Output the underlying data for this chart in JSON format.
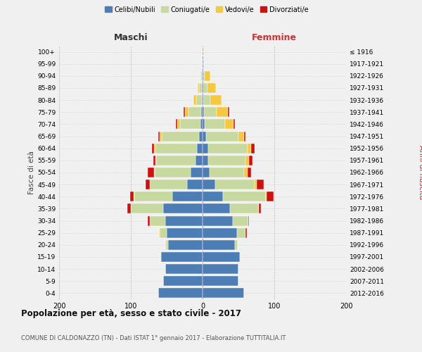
{
  "age_groups": [
    "0-4",
    "5-9",
    "10-14",
    "15-19",
    "20-24",
    "25-29",
    "30-34",
    "35-39",
    "40-44",
    "45-49",
    "50-54",
    "55-59",
    "60-64",
    "65-69",
    "70-74",
    "75-79",
    "80-84",
    "85-89",
    "90-94",
    "95-99",
    "100+"
  ],
  "birth_years": [
    "2012-2016",
    "2007-2011",
    "2002-2006",
    "1997-2001",
    "1992-1996",
    "1987-1991",
    "1982-1986",
    "1977-1981",
    "1972-1976",
    "1967-1971",
    "1962-1966",
    "1957-1961",
    "1952-1956",
    "1947-1951",
    "1942-1946",
    "1937-1941",
    "1932-1936",
    "1927-1931",
    "1922-1926",
    "1917-1921",
    "≤ 1916"
  ],
  "males": {
    "celibi": [
      62,
      55,
      52,
      58,
      48,
      50,
      52,
      55,
      42,
      22,
      17,
      10,
      8,
      5,
      3,
      2,
      1,
      1,
      0,
      0,
      0
    ],
    "coniugati": [
      0,
      0,
      0,
      1,
      3,
      10,
      22,
      45,
      53,
      52,
      50,
      55,
      58,
      52,
      28,
      18,
      8,
      4,
      2,
      0,
      0
    ],
    "vedovi": [
      0,
      0,
      0,
      0,
      1,
      1,
      0,
      0,
      1,
      0,
      1,
      1,
      2,
      3,
      4,
      5,
      4,
      2,
      1,
      0,
      0
    ],
    "divorziati": [
      0,
      0,
      0,
      0,
      0,
      0,
      2,
      5,
      5,
      5,
      8,
      3,
      3,
      2,
      2,
      1,
      0,
      0,
      0,
      0,
      0
    ]
  },
  "females": {
    "nubili": [
      58,
      50,
      50,
      52,
      45,
      48,
      42,
      38,
      28,
      18,
      10,
      8,
      8,
      5,
      3,
      2,
      1,
      1,
      1,
      1,
      0
    ],
    "coniugate": [
      0,
      0,
      0,
      1,
      4,
      12,
      22,
      40,
      60,
      55,
      48,
      52,
      55,
      45,
      28,
      18,
      10,
      6,
      2,
      0,
      0
    ],
    "vedove": [
      0,
      0,
      0,
      0,
      0,
      0,
      0,
      0,
      1,
      2,
      5,
      5,
      5,
      8,
      12,
      15,
      15,
      12,
      8,
      1,
      1
    ],
    "divorziate": [
      0,
      0,
      0,
      0,
      0,
      2,
      1,
      3,
      10,
      10,
      5,
      5,
      5,
      2,
      2,
      2,
      0,
      0,
      0,
      0,
      0
    ]
  },
  "colors": {
    "celibi": "#4d7db5",
    "coniugati": "#c8d9a0",
    "vedovi": "#f5c842",
    "divorziati": "#cc1111"
  },
  "title": "Popolazione per età, sesso e stato civile - 2017",
  "subtitle": "COMUNE DI CALDONAZZO (TN) - Dati ISTAT 1° gennaio 2017 - Elaborazione TUTTITALIA.IT",
  "xlabel_left": "Maschi",
  "xlabel_right": "Femmine",
  "ylabel_left": "Fasce di età",
  "ylabel_right": "Anni di nascita",
  "xlim": 200,
  "bg_color": "#f0f0f0",
  "legend_labels": [
    "Celibi/Nubili",
    "Coniugati/e",
    "Vedovi/e",
    "Divorziati/e"
  ]
}
